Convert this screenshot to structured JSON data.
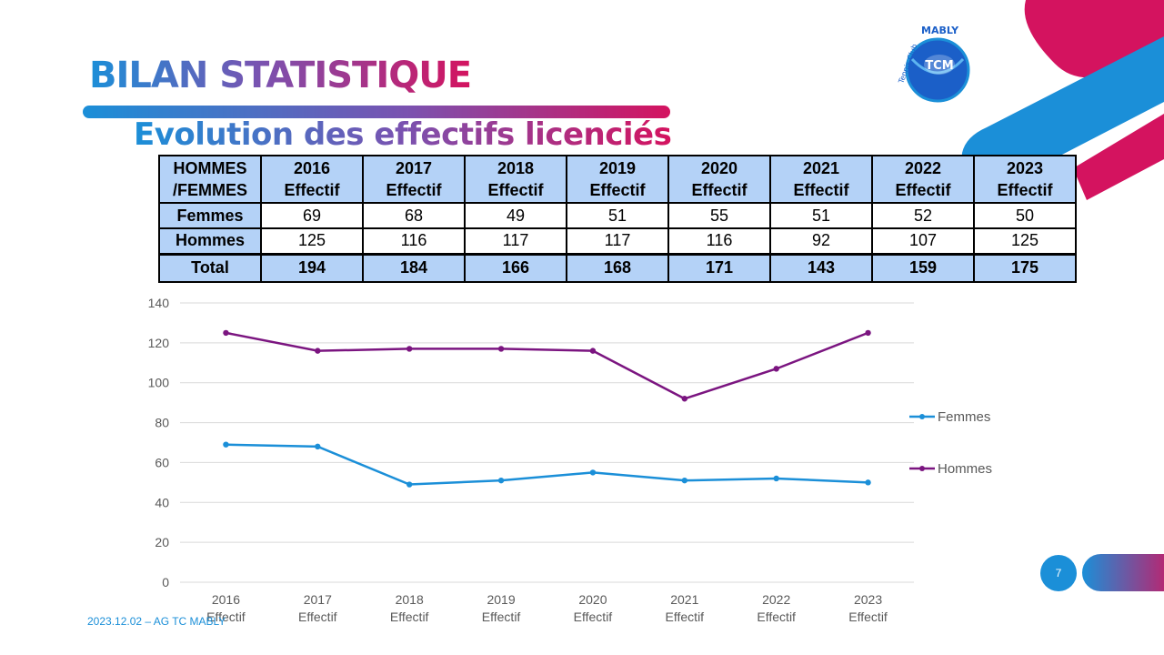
{
  "slide": {
    "title": "BILAN STATISTIQUE",
    "subtitle": "Evolution des effectifs licenciés",
    "footer": "2023.12.02 – AG TC MABLY",
    "page_number": "7"
  },
  "logo": {
    "text_top": "Tennis Club MABLY",
    "badge": "TCM"
  },
  "table": {
    "corner": [
      "HOMMES",
      "/FEMMES"
    ],
    "columns": [
      {
        "year": "2016",
        "sub": "Effectif"
      },
      {
        "year": "2017",
        "sub": "Effectif"
      },
      {
        "year": "2018",
        "sub": "Effectif"
      },
      {
        "year": "2019",
        "sub": "Effectif"
      },
      {
        "year": "2020",
        "sub": "Effectif"
      },
      {
        "year": "2021",
        "sub": "Effectif"
      },
      {
        "year": "2022",
        "sub": "Effectif"
      },
      {
        "year": "2023",
        "sub": "Effectif"
      }
    ],
    "rows": [
      {
        "label": "Femmes",
        "values": [
          "69",
          "68",
          "49",
          "51",
          "55",
          "51",
          "52",
          "50"
        ]
      },
      {
        "label": "Hommes",
        "values": [
          "125",
          "116",
          "117",
          "117",
          "116",
          "92",
          "107",
          "125"
        ]
      }
    ],
    "total": {
      "label": "Total",
      "values": [
        "194",
        "184",
        "166",
        "168",
        "171",
        "143",
        "159",
        "175"
      ]
    }
  },
  "chart_data": {
    "type": "line",
    "categories": [
      "2016 Effectif",
      "2017 Effectif",
      "2018 Effectif",
      "2019 Effectif",
      "2020 Effectif",
      "2021 Effectif",
      "2022 Effectif",
      "2023 Effectif"
    ],
    "category_lines": [
      [
        "2016",
        "Effectif"
      ],
      [
        "2017",
        "Effectif"
      ],
      [
        "2018",
        "Effectif"
      ],
      [
        "2019",
        "Effectif"
      ],
      [
        "2020",
        "Effectif"
      ],
      [
        "2021",
        "Effectif"
      ],
      [
        "2022",
        "Effectif"
      ],
      [
        "2023",
        "Effectif"
      ]
    ],
    "series": [
      {
        "name": "Femmes",
        "values": [
          69,
          68,
          49,
          51,
          55,
          51,
          52,
          50
        ],
        "color": "#1b8fd8"
      },
      {
        "name": "Hommes",
        "values": [
          125,
          116,
          117,
          117,
          116,
          92,
          107,
          125
        ],
        "color": "#7b1580"
      }
    ],
    "ylim": [
      0,
      140
    ],
    "yticks": [
      0,
      20,
      40,
      60,
      80,
      100,
      120,
      140
    ],
    "grid": true,
    "legend": "right"
  },
  "colors": {
    "blue": "#1b8fd8",
    "magenta": "#d4135f",
    "purple": "#7b1580",
    "table_fill": "#b4d2f7"
  }
}
